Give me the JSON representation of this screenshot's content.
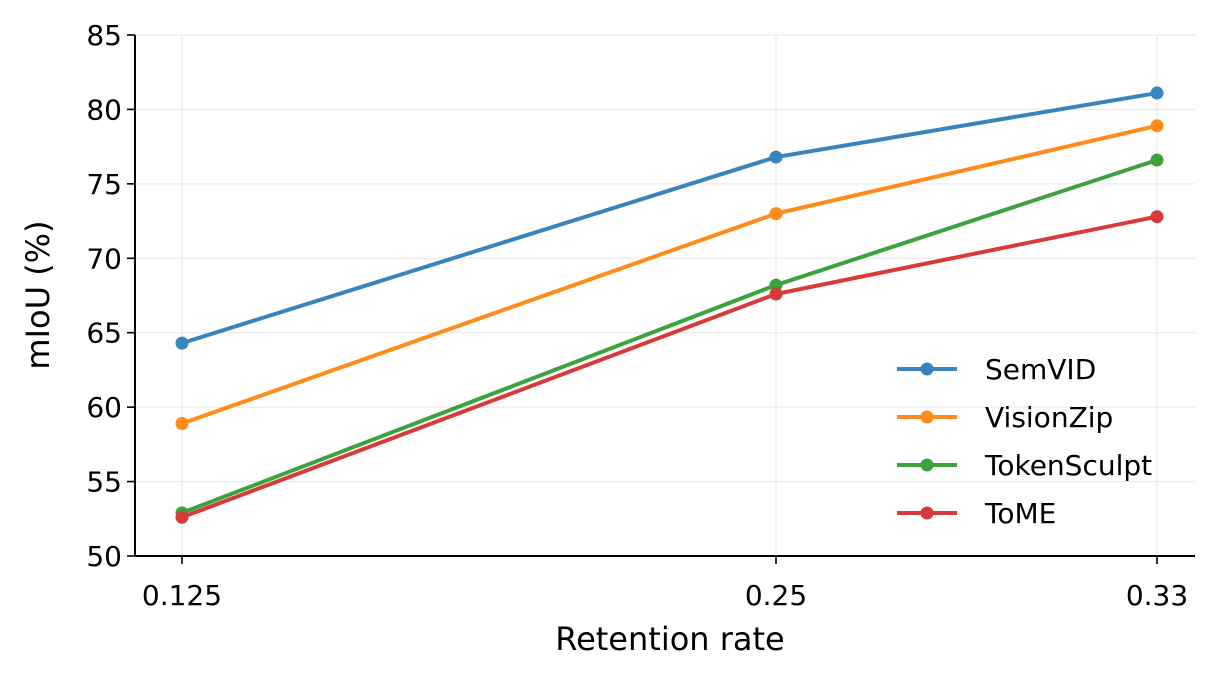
{
  "chart_data": {
    "type": "line",
    "x": [
      "0.125",
      "0.25",
      "0.33"
    ],
    "xlabel": "Retention rate",
    "ylabel": "mIoU (%)",
    "ylim": [
      50,
      85
    ],
    "yticks": [
      50,
      55,
      60,
      65,
      70,
      75,
      80,
      85
    ],
    "grid": true,
    "legend_position": "lower-right",
    "series": [
      {
        "name": "SemVID",
        "color": "#3a84bd",
        "values": [
          64.3,
          76.8,
          81.1
        ]
      },
      {
        "name": "VisionZip",
        "color": "#ff8c1a",
        "values": [
          58.9,
          73.0,
          78.9
        ]
      },
      {
        "name": "TokenSculpt",
        "color": "#3ca33c",
        "values": [
          52.9,
          68.2,
          76.6
        ]
      },
      {
        "name": "ToME",
        "color": "#d83a3b",
        "values": [
          52.6,
          67.6,
          72.8
        ]
      }
    ]
  }
}
